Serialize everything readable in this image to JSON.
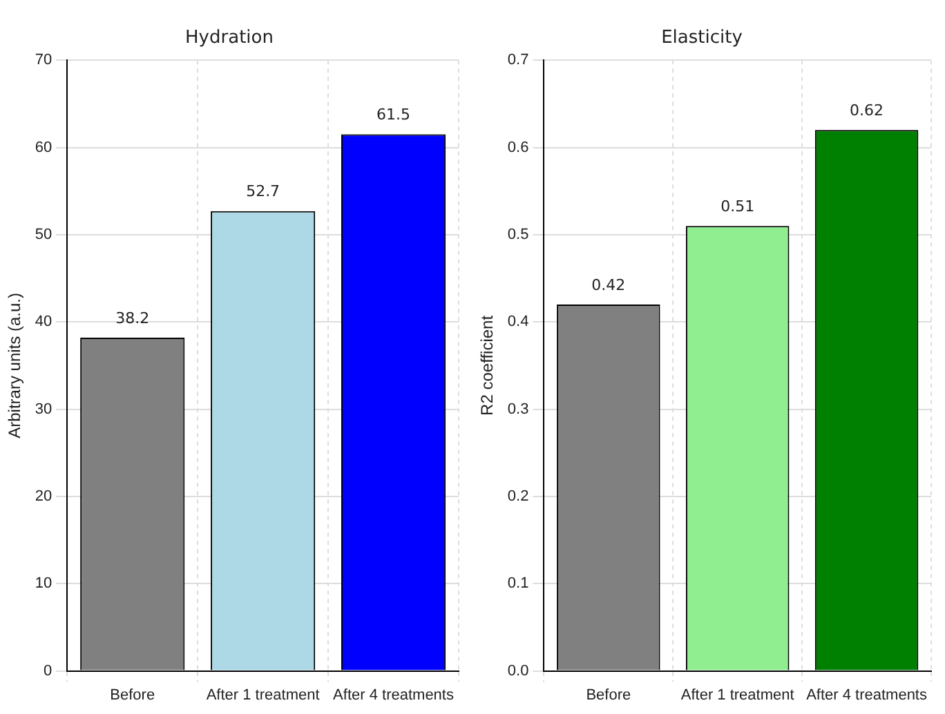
{
  "chart_data": [
    {
      "type": "bar",
      "title": "Hydration",
      "ylabel": "Arbitrary units (a.u.)",
      "categories": [
        "Before",
        "After 1 treatment",
        "After 4 treatments"
      ],
      "values": [
        38.2,
        52.7,
        61.5
      ],
      "colors": [
        "#808080",
        "#add8e6",
        "#0000ff"
      ],
      "ylim": [
        0,
        70
      ],
      "yticks": [
        0,
        10,
        20,
        30,
        40,
        50,
        60,
        70
      ],
      "grid": true,
      "data_labels": true
    },
    {
      "type": "bar",
      "title": "Elasticity",
      "ylabel": "R2 coefficient",
      "categories": [
        "Before",
        "After 1 treatment",
        "After 4 treatments"
      ],
      "values": [
        0.42,
        0.51,
        0.62
      ],
      "colors": [
        "#808080",
        "#90ee90",
        "#008000"
      ],
      "ylim": [
        0,
        0.7
      ],
      "yticks": [
        {
          "value": 0,
          "label": "0.0"
        },
        {
          "value": 0.1,
          "label": "0.1"
        },
        {
          "value": 0.2,
          "label": "0.2"
        },
        {
          "value": 0.3,
          "label": "0.3"
        },
        {
          "value": 0.4,
          "label": "0.4"
        },
        {
          "value": 0.5,
          "label": "0.5"
        },
        {
          "value": 0.6,
          "label": "0.6"
        },
        {
          "value": 0.7,
          "label": "0.7"
        }
      ],
      "grid": true,
      "data_labels": true
    }
  ]
}
